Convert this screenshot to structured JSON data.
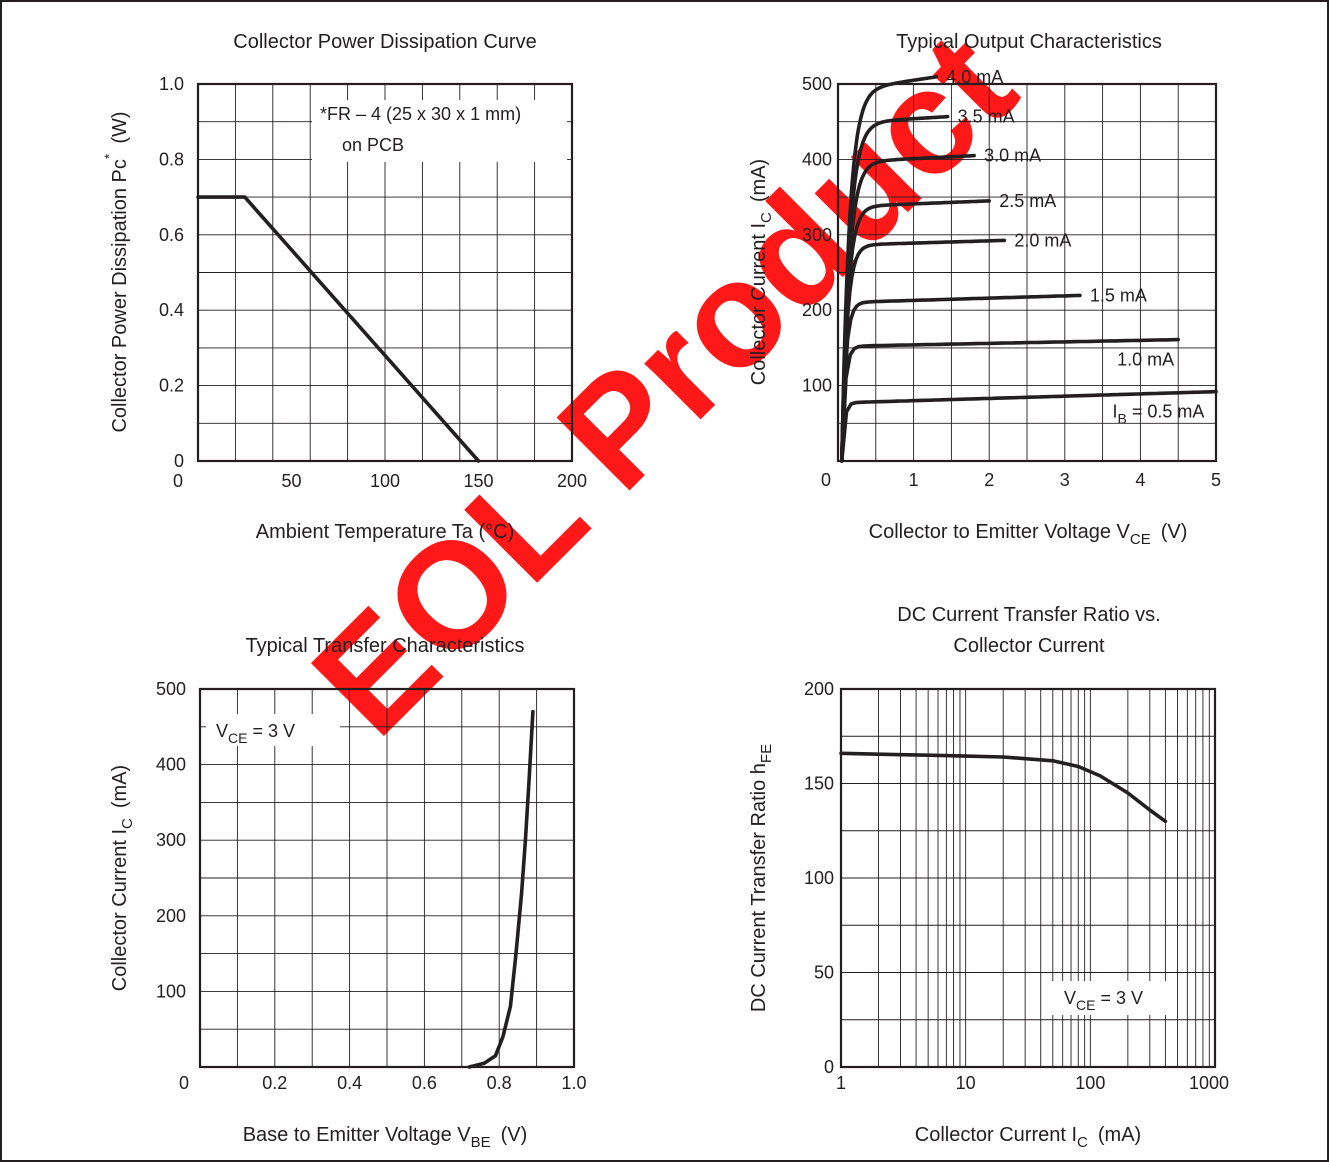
{
  "colors": {
    "ink": "#231f20",
    "watermark": "#ff0000"
  },
  "watermark": "EOL Product",
  "chart_data": [
    {
      "type": "line",
      "title": "Collector Power Dissipation Curve",
      "xlabel": "Ambient Temperature   Ta  (°C)",
      "ylabel_text": "Collector Power Dissipation   Pc",
      "ylabel_sup": "*",
      "ylabel_unit": "(W)",
      "xlim": [
        0,
        200
      ],
      "ylim": [
        0,
        1.0
      ],
      "x_ticks": [
        "0",
        "50",
        "100",
        "150",
        "200"
      ],
      "y_ticks": [
        "0",
        "0.2",
        "0.4",
        "0.6",
        "0.8",
        "1.0"
      ],
      "grid": true,
      "annotation": [
        "*FR – 4 (25 x 30 x 1 mm)",
        "on PCB"
      ],
      "series": [
        {
          "x": [
            0,
            25,
            150
          ],
          "y": [
            0.7,
            0.7,
            0
          ]
        }
      ]
    },
    {
      "type": "line",
      "title": "Typical Output Characteristics",
      "xlabel_text": "Collector to Emitter Voltage   V",
      "xlabel_sub": "CE",
      "xlabel_unit": "(V)",
      "ylabel_text": "Collector Current   I",
      "ylabel_sub": "C",
      "ylabel_unit": "(mA)",
      "xlim": [
        0,
        5
      ],
      "ylim": [
        0,
        500
      ],
      "x_ticks": [
        "0",
        "1",
        "2",
        "3",
        "4",
        "5"
      ],
      "y_ticks": [
        "100",
        "200",
        "300",
        "400",
        "500"
      ],
      "grid": true,
      "series": [
        {
          "name": "4.0 mA",
          "label_pre": "",
          "label_sub": "",
          "label": "4.0 mA",
          "sat": 490,
          "slope": 15,
          "knee": 0.3,
          "xend": 1.3
        },
        {
          "name": "3.5 mA",
          "label_pre": "",
          "label_sub": "",
          "label": "3.5 mA",
          "sat": 448,
          "slope": 6,
          "knee": 0.3,
          "xend": 1.45
        },
        {
          "name": "3.0 mA",
          "label_pre": "",
          "label_sub": "",
          "label": "3.0 mA",
          "sat": 396,
          "slope": 5,
          "knee": 0.28,
          "xend": 1.8
        },
        {
          "name": "2.5 mA",
          "label_pre": "",
          "label_sub": "",
          "label": "2.5 mA",
          "sat": 337,
          "slope": 4,
          "knee": 0.24,
          "xend": 2.0
        },
        {
          "name": "2.0 mA",
          "label_pre": "",
          "label_sub": "",
          "label": "2.0 mA",
          "sat": 286,
          "slope": 3,
          "knee": 0.21,
          "xend": 2.2
        },
        {
          "name": "1.5 mA",
          "label_pre": "",
          "label_sub": "",
          "label": "1.5 mA",
          "sat": 210,
          "slope": 3,
          "knee": 0.16,
          "xend": 3.2
        },
        {
          "name": "1.0 mA",
          "label_pre": "",
          "label_sub": "",
          "label": "1.0 mA",
          "sat": 152,
          "slope": 2,
          "knee": 0.13,
          "xend": 4.5
        },
        {
          "name": "0.5 mA",
          "label_pre": "I",
          "label_sub": "B",
          "label": " = 0.5 mA",
          "sat": 77,
          "slope": 3,
          "knee": 0.1,
          "xend": 5.0
        }
      ]
    },
    {
      "type": "line",
      "title": "Typical Transfer Characteristics",
      "xlabel_text": "Base to Emitter Voltage   V",
      "xlabel_sub": "BE",
      "xlabel_unit": "(V)",
      "ylabel_text": "Collector Current   I",
      "ylabel_sub": "C",
      "ylabel_unit": "(mA)",
      "xlim": [
        0,
        1.0
      ],
      "ylim": [
        0,
        500
      ],
      "x_ticks": [
        "0",
        "0.2",
        "0.4",
        "0.6",
        "0.8",
        "1.0"
      ],
      "y_ticks": [
        "0",
        "100",
        "200",
        "300",
        "400",
        "500"
      ],
      "grid": true,
      "annotation_pre": "V",
      "annotation_sub": "CE",
      "annotation_post": " = 3 V",
      "series": [
        {
          "x": [
            0.72,
            0.76,
            0.79,
            0.81,
            0.83,
            0.845,
            0.86,
            0.87,
            0.88,
            0.89
          ],
          "y": [
            0,
            5,
            15,
            40,
            80,
            150,
            230,
            300,
            380,
            470
          ]
        }
      ]
    },
    {
      "type": "line",
      "title_lines": [
        "DC Current Transfer Ratio vs.",
        "Collector Current"
      ],
      "xlabel_text": "Collector Current   I",
      "xlabel_sub": "C",
      "xlabel_unit": "(mA)",
      "ylabel_text": "DC Current Transfer Ratio   h",
      "ylabel_sub": "FE",
      "x_scale": "log",
      "xlim": [
        1,
        1000
      ],
      "ylim": [
        0,
        200
      ],
      "x_ticks": [
        "1",
        "10",
        "100",
        "1000"
      ],
      "y_ticks": [
        "0",
        "50",
        "100",
        "150",
        "200"
      ],
      "grid": true,
      "annotation_pre": "V",
      "annotation_sub": "CE",
      "annotation_post": " = 3 V",
      "series": [
        {
          "x": [
            1,
            2,
            5,
            10,
            20,
            50,
            80,
            120,
            200,
            300,
            400
          ],
          "y": [
            166,
            165.5,
            165,
            164.5,
            164,
            162,
            159,
            154,
            145,
            136,
            130
          ]
        }
      ]
    }
  ]
}
